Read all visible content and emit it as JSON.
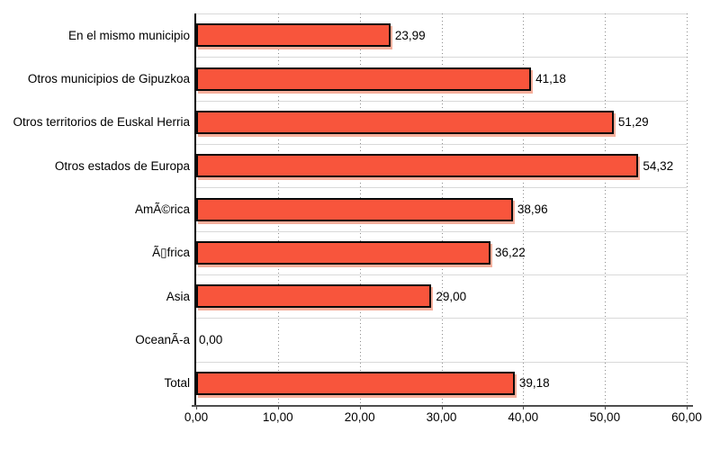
{
  "chart_data": {
    "type": "bar",
    "orientation": "horizontal",
    "title": "",
    "xlabel": "",
    "ylabel": "",
    "categories": [
      "En el mismo municipio",
      "Otros municipios de Gipuzkoa",
      "Otros territorios de Euskal Herria",
      "Otros estados de Europa",
      "AmÃ©rica",
      "Ã▯frica",
      "Asia",
      "OceanÃ-a",
      "Total"
    ],
    "values": [
      23.99,
      41.18,
      51.29,
      54.32,
      38.96,
      36.22,
      29.0,
      0.0,
      39.18
    ],
    "value_labels": [
      "23,99",
      "41,18",
      "51,29",
      "54,32",
      "38,96",
      "36,22",
      "29,00",
      "0,00",
      "39,18"
    ],
    "x_ticks": [
      "0,00",
      "10,00",
      "20,00",
      "30,00",
      "40,00",
      "50,00",
      "60,00"
    ],
    "x_tick_values": [
      0,
      10,
      20,
      30,
      40,
      50,
      60
    ],
    "xlim": [
      0,
      60
    ],
    "grid": "vertical-dotted",
    "legend": "none",
    "colors": {
      "bar_fill": "#F8553C",
      "bar_border": "#0A0A0A",
      "bar_shadow": "#F5AF9C",
      "band_line": "#D9D9D9",
      "grid_dot": "#8C8C8C",
      "domain_axis": "#000000",
      "range_axis": "#4D4D4D",
      "text": "#000000"
    }
  }
}
